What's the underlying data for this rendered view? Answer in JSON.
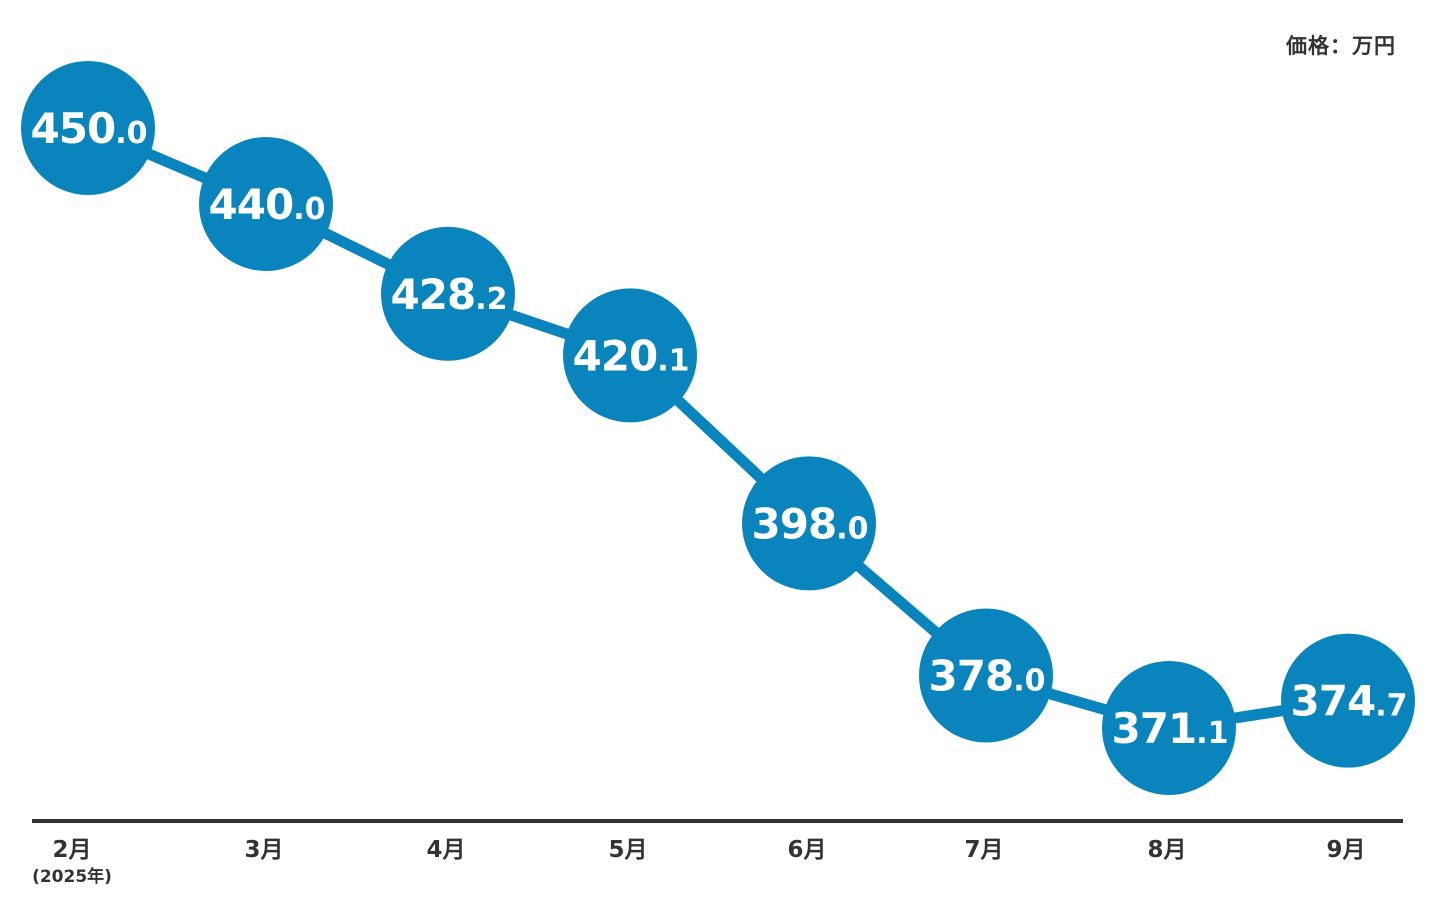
{
  "chart_data": {
    "type": "line",
    "unit_label": "価格：万円",
    "categories": [
      "2月",
      "3月",
      "4月",
      "5月",
      "6月",
      "7月",
      "8月",
      "9月"
    ],
    "category_sublabels": [
      "(2025年)",
      "",
      "",
      "",
      "",
      "",
      "",
      ""
    ],
    "values": [
      450.0,
      440.0,
      428.2,
      420.1,
      398.0,
      378.0,
      371.1,
      374.7
    ],
    "data_labels": [
      {
        "int": "450",
        "dec": ".0"
      },
      {
        "int": "440",
        "dec": ".0"
      },
      {
        "int": "428",
        "dec": ".2"
      },
      {
        "int": "420",
        "dec": ".1"
      },
      {
        "int": "398",
        "dec": ".0"
      },
      {
        "int": "378",
        "dec": ".0"
      },
      {
        "int": "371",
        "dec": ".1"
      },
      {
        "int": "374",
        "dec": ".7"
      }
    ],
    "title": "",
    "xlabel": "",
    "ylabel": "",
    "grid": false,
    "colors": {
      "marker": "#0984bd",
      "line": "#0984bd",
      "axis": "#333333",
      "label_text": "#ffffff"
    }
  }
}
